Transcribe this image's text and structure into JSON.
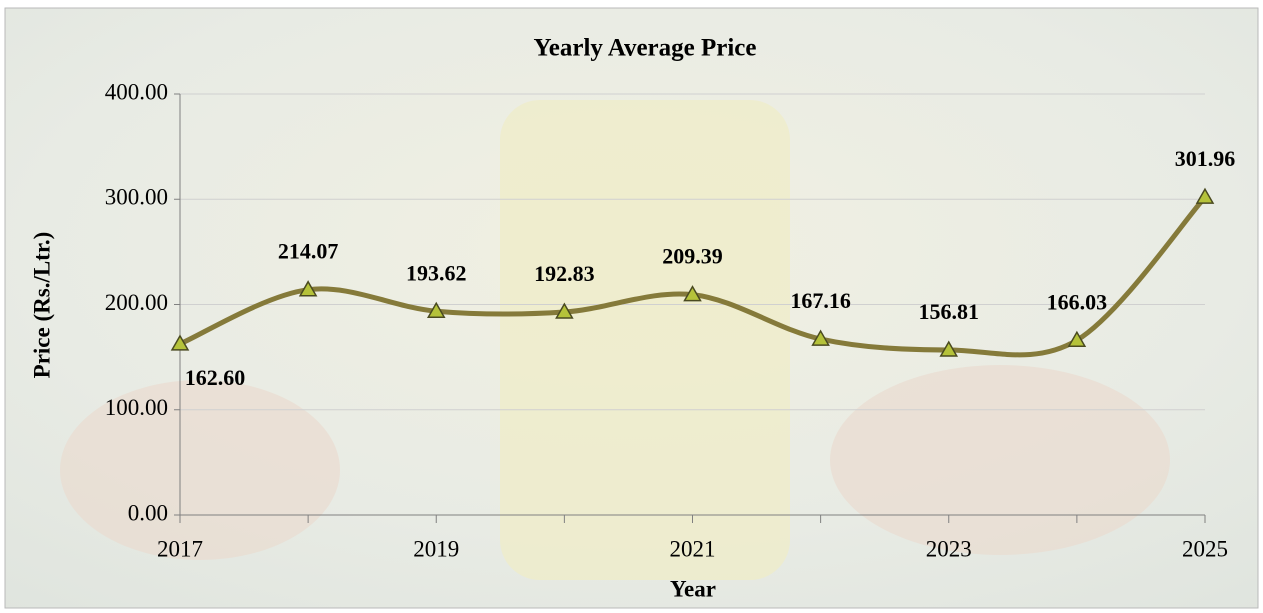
{
  "chart_data": {
    "type": "line",
    "title": "Yearly Average Price",
    "x_label": "Year",
    "y_label": "Price (Rs./Ltr.)",
    "categories": [
      "2017",
      null,
      "2019",
      null,
      "2021",
      null,
      "2023",
      null,
      "2025"
    ],
    "series": [
      {
        "name": "Yearly Average Price",
        "color": "#857a3a",
        "values": [
          162.6,
          214.07,
          193.62,
          192.83,
          209.39,
          167.16,
          156.81,
          166.03,
          301.96
        ],
        "value_labels": [
          "162.60",
          "214.07",
          "193.62",
          "192.83",
          "209.39",
          "167.16",
          "156.81",
          "166.03",
          "301.96"
        ]
      }
    ],
    "ylim": [
      0,
      400
    ],
    "yticks": [
      {
        "value": 0,
        "label": "0.00"
      },
      {
        "value": 100,
        "label": "100.00"
      },
      {
        "value": 200,
        "label": "200.00"
      },
      {
        "value": 300,
        "label": "300.00"
      },
      {
        "value": 400,
        "label": "400.00"
      }
    ],
    "grid": true,
    "smooth": true
  }
}
